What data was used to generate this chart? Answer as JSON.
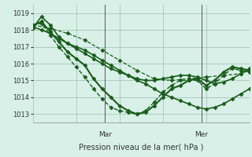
{
  "title": "",
  "xlabel": "Pression niveau de la mer( hPa )",
  "ylabel": "",
  "background_color": "#d8f0e8",
  "grid_color": "#a0c8b8",
  "line_color": "#1a5c1a",
  "ylim": [
    1012.5,
    1019.5
  ],
  "yticks": [
    1013,
    1014,
    1015,
    1016,
    1017,
    1018,
    1019
  ],
  "day_labels": [
    "Mar",
    "Mer"
  ],
  "day_positions": [
    0.333,
    0.778
  ],
  "series": [
    {
      "x": [
        0.0,
        0.04,
        0.08,
        0.12,
        0.16,
        0.2,
        0.24,
        0.28,
        0.32,
        0.36,
        0.4,
        0.44,
        0.48,
        0.52,
        0.56,
        0.6,
        0.64,
        0.68,
        0.72,
        0.76,
        0.8,
        0.84,
        0.88,
        0.92,
        0.96,
        1.0
      ],
      "y": [
        1018.1,
        1018.8,
        1018.3,
        1017.6,
        1017.2,
        1017.0,
        1016.8,
        1016.5,
        1016.2,
        1015.9,
        1015.6,
        1015.3,
        1015.0,
        1014.8,
        1014.5,
        1014.2,
        1014.0,
        1013.8,
        1013.6,
        1013.4,
        1013.3,
        1013.4,
        1013.6,
        1013.9,
        1014.2,
        1014.5
      ],
      "style": "-",
      "marker": "D",
      "markersize": 2.5,
      "linewidth": 1.2
    },
    {
      "x": [
        0.0,
        0.04,
        0.08,
        0.12,
        0.16,
        0.2,
        0.24,
        0.28,
        0.32,
        0.36,
        0.4,
        0.44,
        0.48,
        0.52,
        0.56,
        0.6,
        0.64,
        0.68,
        0.72,
        0.76,
        0.8,
        0.84,
        0.88,
        0.92,
        0.96,
        1.0
      ],
      "y": [
        1018.2,
        1018.0,
        1017.8,
        1017.5,
        1017.2,
        1016.9,
        1016.6,
        1016.3,
        1016.0,
        1015.7,
        1015.5,
        1015.3,
        1015.1,
        1015.0,
        1015.0,
        1015.1,
        1015.2,
        1015.3,
        1015.3,
        1015.2,
        1015.0,
        1014.8,
        1014.9,
        1015.1,
        1015.4,
        1015.7
      ],
      "style": "-",
      "marker": "D",
      "markersize": 2.5,
      "linewidth": 1.2
    },
    {
      "x": [
        0.0,
        0.08,
        0.16,
        0.24,
        0.32,
        0.4,
        0.48,
        0.56,
        0.64,
        0.72,
        0.8,
        0.88,
        0.96,
        1.0
      ],
      "y": [
        1018.3,
        1018.1,
        1017.8,
        1017.4,
        1016.8,
        1016.2,
        1015.6,
        1015.1,
        1015.0,
        1015.1,
        1015.2,
        1015.3,
        1015.4,
        1015.6
      ],
      "style": "--",
      "marker": "D",
      "markersize": 2.5,
      "linewidth": 0.9
    },
    {
      "x": [
        0.0,
        0.04,
        0.08,
        0.12,
        0.16,
        0.2,
        0.24,
        0.28,
        0.32,
        0.36,
        0.4,
        0.44,
        0.48,
        0.52,
        0.56,
        0.6,
        0.64,
        0.68,
        0.72,
        0.76,
        0.8,
        0.84,
        0.88,
        0.92,
        0.96,
        1.0
      ],
      "y": [
        1018.25,
        1018.5,
        1017.9,
        1017.3,
        1016.7,
        1016.3,
        1015.9,
        1015.1,
        1014.5,
        1014.0,
        1013.5,
        1013.2,
        1013.0,
        1013.1,
        1013.5,
        1014.0,
        1014.5,
        1014.7,
        1015.0,
        1015.1,
        1014.7,
        1015.0,
        1015.5,
        1015.8,
        1015.7,
        1015.6
      ],
      "style": "-",
      "marker": "D",
      "markersize": 2.5,
      "linewidth": 1.5
    },
    {
      "x": [
        0.0,
        0.04,
        0.08,
        0.12,
        0.16,
        0.2,
        0.24,
        0.28,
        0.32,
        0.36,
        0.4,
        0.44,
        0.48,
        0.52,
        0.56,
        0.6,
        0.64,
        0.68,
        0.72,
        0.76,
        0.8,
        0.84,
        0.88,
        0.92,
        0.96,
        1.0
      ],
      "y": [
        1018.3,
        1018.4,
        1017.7,
        1017.0,
        1016.4,
        1015.8,
        1015.2,
        1014.5,
        1013.9,
        1013.4,
        1013.2,
        1013.1,
        1013.0,
        1013.2,
        1013.7,
        1014.3,
        1014.7,
        1015.0,
        1015.0,
        1015.0,
        1014.5,
        1014.8,
        1015.3,
        1015.7,
        1015.6,
        1015.5
      ],
      "style": "--",
      "marker": "D",
      "markersize": 2.5,
      "linewidth": 1.0
    }
  ]
}
